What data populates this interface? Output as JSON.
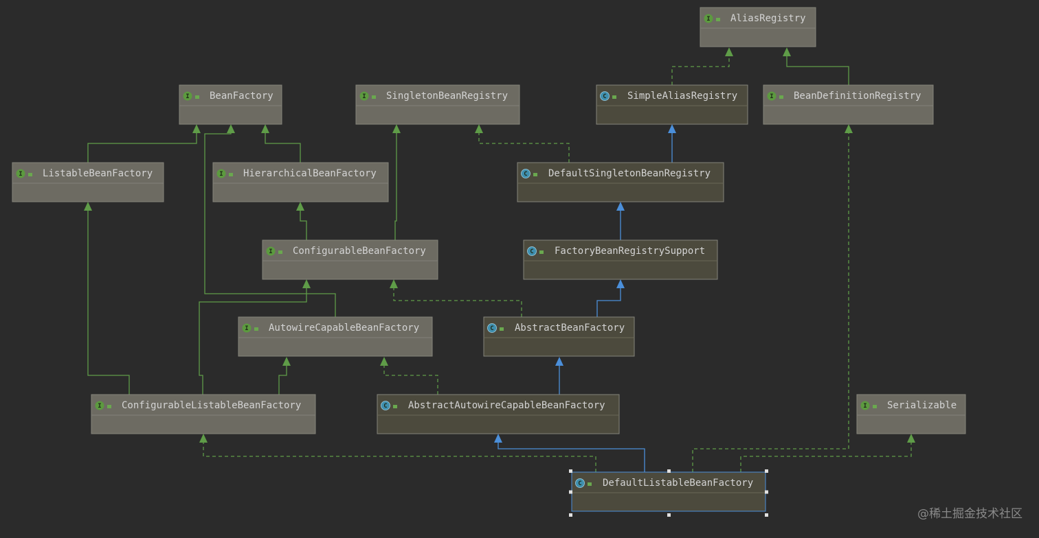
{
  "nodes": [
    {
      "icon": "I",
      "label": "AliasRegistry"
    },
    {
      "icon": "I",
      "label": "BeanFactory"
    },
    {
      "icon": "I",
      "label": "SingletonBeanRegistry"
    },
    {
      "icon": "C",
      "label": "SimpleAliasRegistry"
    },
    {
      "icon": "I",
      "label": "BeanDefinitionRegistry"
    },
    {
      "icon": "I",
      "label": "ListableBeanFactory"
    },
    {
      "icon": "I",
      "label": "HierarchicalBeanFactory"
    },
    {
      "icon": "C",
      "label": "DefaultSingletonBeanRegistry"
    },
    {
      "icon": "I",
      "label": "ConfigurableBeanFactory"
    },
    {
      "icon": "C",
      "label": "FactoryBeanRegistrySupport"
    },
    {
      "icon": "I",
      "label": "AutowireCapableBeanFactory"
    },
    {
      "icon": "C",
      "label": "AbstractBeanFactory"
    },
    {
      "icon": "I",
      "label": "ConfigurableListableBeanFactory"
    },
    {
      "icon": "C",
      "label": "AbstractAutowireCapableBeanFactory"
    },
    {
      "icon": "I",
      "label": "Serializable"
    },
    {
      "icon": "C",
      "label": "DefaultListableBeanFactory"
    }
  ],
  "watermark": "@稀土掘金技术社区"
}
